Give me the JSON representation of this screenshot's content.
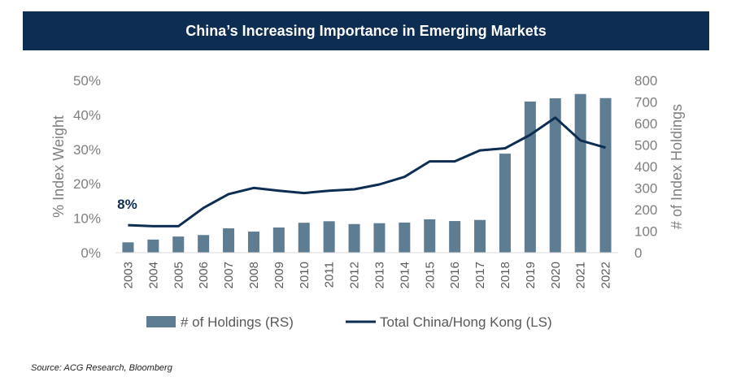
{
  "title": "China’s Increasing Importance in Emerging Markets",
  "source": "Source: ACG Research, Bloomberg",
  "colors": {
    "banner": "#0e2d52",
    "bars": "#5e7d93",
    "line": "#0e2d52"
  },
  "chart_data": {
    "type": "bar+line",
    "categories": [
      "2003",
      "2004",
      "2005",
      "2006",
      "2007",
      "2008",
      "2009",
      "2010",
      "2011",
      "2012",
      "2013",
      "2014",
      "2015",
      "2016",
      "2017",
      "2018",
      "2019",
      "2020",
      "2021",
      "2022"
    ],
    "series": [
      {
        "name": "# of Holdings (RS)",
        "type": "bar",
        "axis": "right",
        "values": [
          48,
          61,
          75,
          82,
          113,
          98,
          117,
          139,
          146,
          133,
          137,
          140,
          155,
          147,
          152,
          460,
          702,
          717,
          737,
          718
        ]
      },
      {
        "name": "Total China/Hong Kong (LS)",
        "type": "line",
        "axis": "left",
        "values": [
          8.0,
          7.7,
          7.7,
          13.0,
          17.0,
          18.8,
          18.0,
          17.3,
          18.0,
          18.4,
          19.8,
          22.0,
          26.5,
          26.5,
          29.7,
          30.3,
          34.2,
          39.2,
          32.6,
          30.5
        ]
      }
    ],
    "y_left": {
      "label": "% Index Weight",
      "ticks": [
        "50%",
        "40%",
        "30%",
        "20%",
        "10%",
        "0%"
      ],
      "range": [
        0,
        50
      ]
    },
    "y_right": {
      "label": "# of Index Holdings",
      "ticks": [
        "800",
        "700",
        "600",
        "500",
        "400",
        "300",
        "200",
        "100",
        "0"
      ],
      "range": [
        0,
        800
      ]
    },
    "annotation": {
      "text": "8%",
      "category": "2003",
      "value": 8.0
    },
    "grid": false,
    "legend": "bottom"
  }
}
